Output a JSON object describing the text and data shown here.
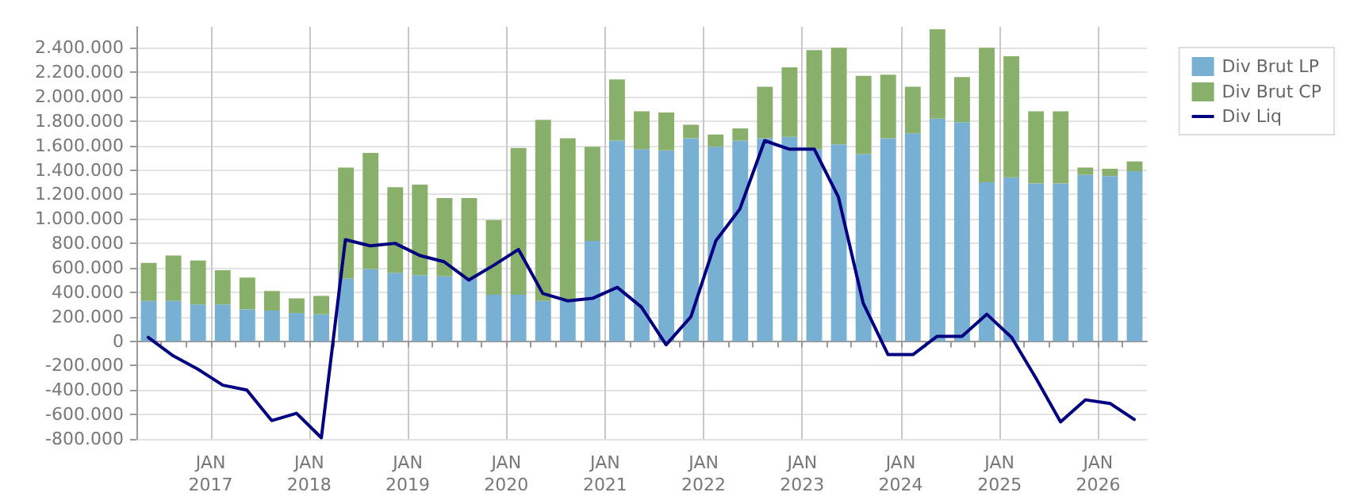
{
  "chart_data": {
    "type": "bar",
    "stacked": true,
    "grid": true,
    "legend": "top right",
    "marker": "none",
    "line_style": "solid",
    "x": [
      "2016-05-15",
      "2016-08-15",
      "2016-11-15",
      "2017-02-15",
      "2017-05-15",
      "2017-08-15",
      "2017-11-15",
      "2018-02-15",
      "2018-05-15",
      "2018-08-15",
      "2018-11-15",
      "2019-02-15",
      "2019-05-15",
      "2019-08-15",
      "2019-11-15",
      "2020-02-15",
      "2020-05-15",
      "2020-08-15",
      "2020-11-15",
      "2021-02-15",
      "2021-05-15",
      "2021-08-15",
      "2021-11-15",
      "2022-02-15",
      "2022-05-15",
      "2022-08-15",
      "2022-11-15",
      "2023-02-15",
      "2023-05-15",
      "2023-08-15",
      "2023-11-15",
      "2024-02-15",
      "2024-05-15",
      "2024-08-15",
      "2024-11-15",
      "2025-02-15",
      "2025-05-15",
      "2025-08-15",
      "2025-11-15",
      "2026-02-15",
      "2026-05-15"
    ],
    "series": [
      {
        "name": "Div Brut LP",
        "color": "#78b0d3",
        "values": [
          330000,
          330000,
          300000,
          300000,
          260000,
          250000,
          230000,
          220000,
          510000,
          590000,
          560000,
          540000,
          530000,
          510000,
          380000,
          380000,
          330000,
          330000,
          820000,
          1640000,
          1570000,
          1560000,
          1660000,
          1590000,
          1640000,
          1660000,
          1670000,
          1570000,
          1610000,
          1530000,
          1660000,
          1700000,
          1820000,
          1790000,
          1300000,
          1340000,
          1290000,
          1290000,
          1360000,
          1350000,
          1390000
        ]
      },
      {
        "name": "Div Brut CP",
        "color": "#88b06a",
        "values": [
          310000,
          370000,
          360000,
          280000,
          260000,
          160000,
          120000,
          150000,
          910000,
          950000,
          700000,
          740000,
          640000,
          660000,
          610000,
          1200000,
          1480000,
          1330000,
          770000,
          500000,
          310000,
          310000,
          110000,
          100000,
          100000,
          420000,
          570000,
          810000,
          790000,
          640000,
          520000,
          380000,
          730000,
          370000,
          1100000,
          990000,
          590000,
          590000,
          60000,
          60000,
          80000
        ]
      },
      {
        "name": "Div Liq",
        "type": "line",
        "color": "#000080",
        "values": [
          30000,
          -120000,
          -230000,
          -360000,
          -400000,
          -650000,
          -590000,
          -790000,
          830000,
          780000,
          800000,
          700000,
          650000,
          500000,
          620000,
          750000,
          390000,
          330000,
          350000,
          440000,
          280000,
          -30000,
          200000,
          820000,
          1080000,
          1640000,
          1570000,
          1570000,
          1180000,
          310000,
          -110000,
          -110000,
          40000,
          40000,
          220000,
          30000,
          -300000,
          -660000,
          -480000,
          -510000,
          -640000
        ]
      }
    ],
    "xlim": [
      "2016-04-01",
      "2026-07-01"
    ],
    "xticks": [
      {
        "value": "2016-07-01",
        "label": null
      },
      {
        "value": "2016-10-01",
        "label": null
      },
      {
        "value": "2017-01-01",
        "label": "JAN\n2017"
      },
      {
        "value": "2017-04-01",
        "label": null
      },
      {
        "value": "2017-07-01",
        "label": null
      },
      {
        "value": "2017-10-01",
        "label": null
      },
      {
        "value": "2018-01-01",
        "label": "JAN\n2018"
      },
      {
        "value": "2018-04-01",
        "label": null
      },
      {
        "value": "2018-07-01",
        "label": null
      },
      {
        "value": "2018-10-01",
        "label": null
      },
      {
        "value": "2019-01-01",
        "label": "JAN\n2019"
      },
      {
        "value": "2019-04-01",
        "label": null
      },
      {
        "value": "2019-07-01",
        "label": null
      },
      {
        "value": "2019-10-01",
        "label": null
      },
      {
        "value": "2020-01-01",
        "label": "JAN\n2020"
      },
      {
        "value": "2020-04-01",
        "label": null
      },
      {
        "value": "2020-07-01",
        "label": null
      },
      {
        "value": "2020-10-01",
        "label": null
      },
      {
        "value": "2021-01-01",
        "label": "JAN\n2021"
      },
      {
        "value": "2021-04-01",
        "label": null
      },
      {
        "value": "2021-07-01",
        "label": null
      },
      {
        "value": "2021-10-01",
        "label": null
      },
      {
        "value": "2022-01-01",
        "label": "JAN\n2022"
      },
      {
        "value": "2022-04-01",
        "label": null
      },
      {
        "value": "2022-07-01",
        "label": null
      },
      {
        "value": "2022-10-01",
        "label": null
      },
      {
        "value": "2023-01-01",
        "label": "JAN\n2023"
      },
      {
        "value": "2023-04-01",
        "label": null
      },
      {
        "value": "2023-07-01",
        "label": null
      },
      {
        "value": "2023-10-01",
        "label": null
      },
      {
        "value": "2024-01-01",
        "label": "JAN\n2024"
      },
      {
        "value": "2024-04-01",
        "label": null
      },
      {
        "value": "2024-07-01",
        "label": null
      },
      {
        "value": "2024-10-01",
        "label": null
      },
      {
        "value": "2025-01-01",
        "label": "JAN\n2025"
      },
      {
        "value": "2025-04-01",
        "label": null
      },
      {
        "value": "2025-07-01",
        "label": null
      },
      {
        "value": "2025-10-01",
        "label": null
      },
      {
        "value": "2026-01-01",
        "label": "JAN\n2026"
      },
      {
        "value": "2026-04-01",
        "label": null
      }
    ],
    "ylim": [
      -800000,
      2570000
    ],
    "yticks": [
      {
        "value": -800000,
        "label": "-800.000"
      },
      {
        "value": -600000,
        "label": "-600.000"
      },
      {
        "value": -400000,
        "label": "-400.000"
      },
      {
        "value": -200000,
        "label": "-200.000"
      },
      0,
      {
        "value": 200000,
        "label": "200.000"
      },
      {
        "value": 400000,
        "label": "400.000"
      },
      {
        "value": 600000,
        "label": "600.000"
      },
      {
        "value": 800000,
        "label": "800.000"
      },
      {
        "value": 1000000,
        "label": "1.000.000"
      },
      {
        "value": 1200000,
        "label": "1.200.000"
      },
      {
        "value": 1400000,
        "label": "1.400.000"
      },
      {
        "value": 1600000,
        "label": "1.600.000"
      },
      {
        "value": 1800000,
        "label": "1.800.000"
      },
      {
        "value": 2000000,
        "label": "2.000.000"
      },
      {
        "value": 2200000,
        "label": "2.200.000"
      },
      {
        "value": 2400000,
        "label": "2.400.000"
      }
    ]
  }
}
